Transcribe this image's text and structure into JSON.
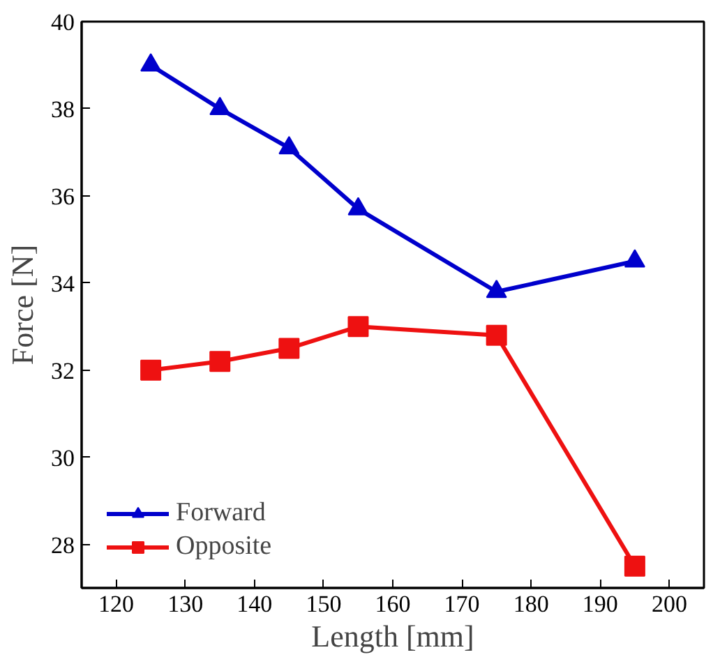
{
  "chart_data": {
    "type": "line",
    "xlabel": "Length [mm]",
    "ylabel": "Force [N]",
    "x": [
      125,
      135,
      145,
      155,
      175,
      195
    ],
    "series": [
      {
        "name": "Forward",
        "color": "#0000cc",
        "marker": "triangle",
        "values": [
          39.0,
          38.0,
          37.1,
          35.7,
          33.8,
          34.5
        ]
      },
      {
        "name": "Opposite",
        "color": "#ee1111",
        "marker": "square",
        "values": [
          32.0,
          32.2,
          32.5,
          33.0,
          32.8,
          27.5
        ]
      }
    ],
    "xlim": [
      115,
      205
    ],
    "xticks": [
      120,
      130,
      140,
      150,
      160,
      170,
      180,
      190,
      200
    ],
    "ylim": [
      27,
      40
    ],
    "yticks": [
      28,
      30,
      32,
      34,
      36,
      38,
      40
    ],
    "grid": false,
    "legend": "bottom left",
    "line_style": "solid"
  }
}
